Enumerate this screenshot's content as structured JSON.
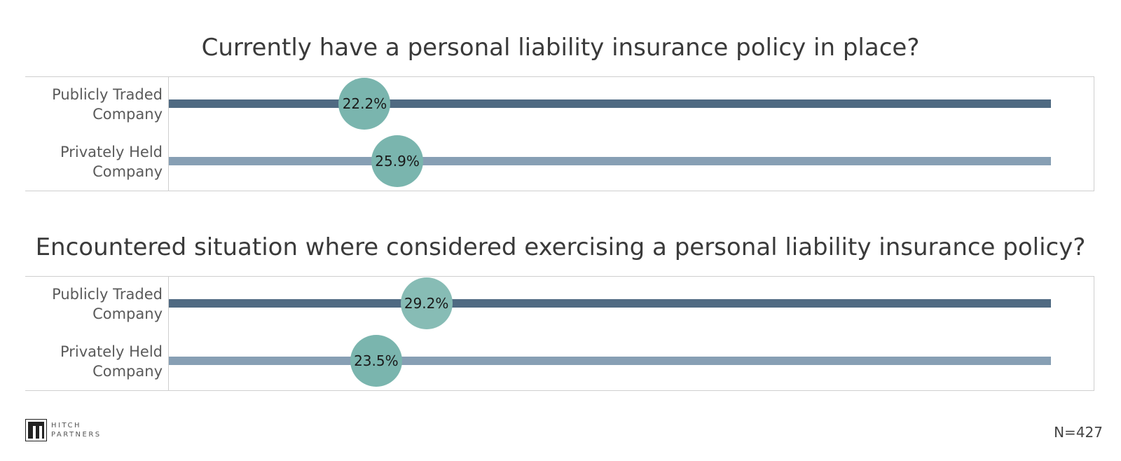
{
  "chart_data": [
    {
      "type": "scatter",
      "title": "Currently have a personal liability insurance policy in place?",
      "categories": [
        "Publicly Traded Company",
        "Privately Held Company"
      ],
      "values": [
        22.2,
        25.9
      ],
      "value_labels": [
        "22.2%",
        "25.9%"
      ],
      "xlim": [
        0,
        100
      ],
      "grid": false,
      "legend": "none"
    },
    {
      "type": "scatter",
      "title": "Encountered situation where considered exercising a personal liability insurance policy?",
      "categories": [
        "Publicly Traded Company",
        "Privately Held Company"
      ],
      "values": [
        29.2,
        23.5
      ],
      "value_labels": [
        "29.2%",
        "23.5%"
      ],
      "xlim": [
        0,
        100
      ],
      "grid": false,
      "legend": "none"
    }
  ],
  "labels": {
    "public_line1": "Publicly Traded",
    "public_line2": "Company",
    "private_line1": "Privately Held",
    "private_line2": "Company"
  },
  "footer": {
    "logo_line1": "HITCH",
    "logo_line2": "PARTNERS",
    "sample_size": "N=427"
  },
  "colors": {
    "public_track": "#4f6a82",
    "private_track": "#879fb4",
    "marker": "#7ab5ae"
  }
}
